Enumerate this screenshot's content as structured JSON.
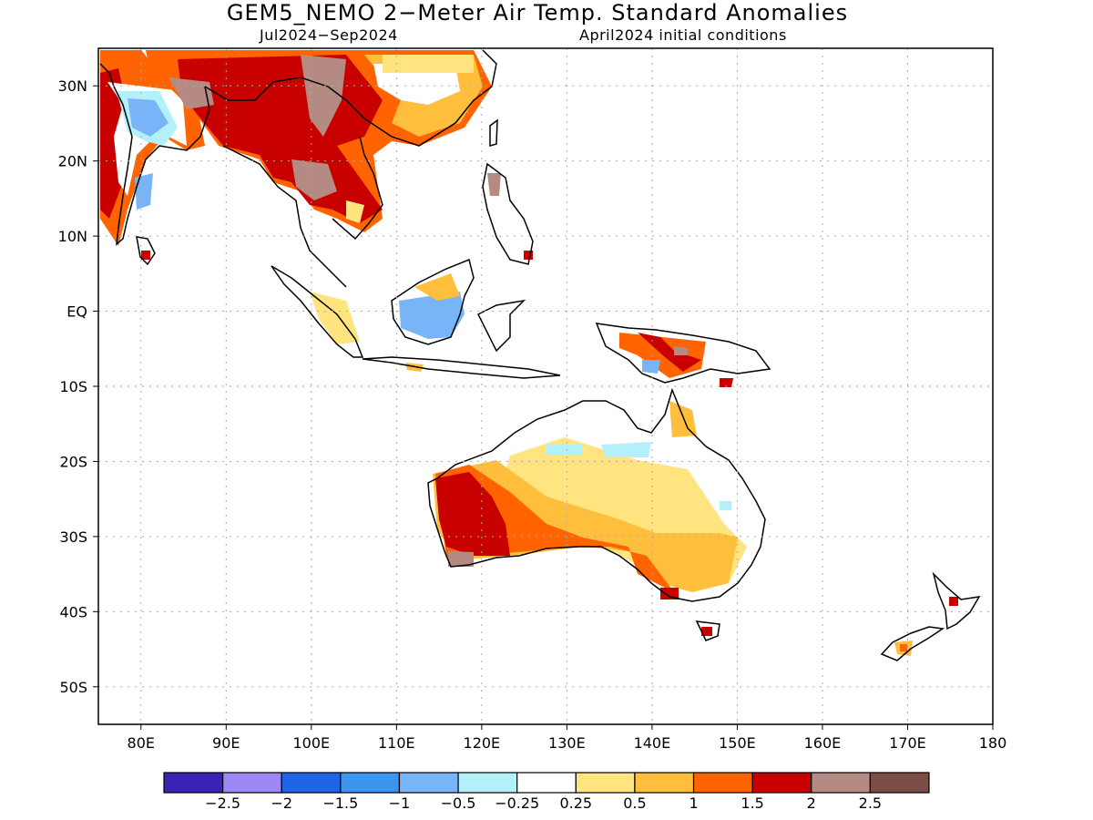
{
  "title": "GEM5_NEMO 2−Meter Air Temp. Standard Anomalies",
  "subtitle_left": "Jul2024−Sep2024",
  "subtitle_right": "April2024 initial conditions",
  "map": {
    "lon_range": [
      75,
      180
    ],
    "lat_range": [
      -55,
      35
    ],
    "lat_ticks": [
      {
        "value": 30,
        "label": "30N"
      },
      {
        "value": 20,
        "label": "20N"
      },
      {
        "value": 10,
        "label": "10N"
      },
      {
        "value": 0,
        "label": "EQ"
      },
      {
        "value": -10,
        "label": "10S"
      },
      {
        "value": -20,
        "label": "20S"
      },
      {
        "value": -30,
        "label": "30S"
      },
      {
        "value": -40,
        "label": "40S"
      },
      {
        "value": -50,
        "label": "50S"
      }
    ],
    "lon_ticks": [
      {
        "value": 80,
        "label": "80E"
      },
      {
        "value": 90,
        "label": "90E"
      },
      {
        "value": 100,
        "label": "100E"
      },
      {
        "value": 110,
        "label": "110E"
      },
      {
        "value": 120,
        "label": "120E"
      },
      {
        "value": 130,
        "label": "130E"
      },
      {
        "value": 140,
        "label": "140E"
      },
      {
        "value": 150,
        "label": "150E"
      },
      {
        "value": 160,
        "label": "160E"
      },
      {
        "value": 170,
        "label": "170E"
      },
      {
        "value": 180,
        "label": "180"
      }
    ],
    "grid": true
  },
  "colorbar": {
    "colors": [
      "#3a22b4",
      "#9c87f4",
      "#1e64e6",
      "#3c96f0",
      "#78b4f8",
      "#b4f0fa",
      "#ffffff",
      "#ffe480",
      "#ffbe3c",
      "#ff6400",
      "#c80000",
      "#b48a82",
      "#7a4e46"
    ],
    "labels": [
      "−2.5",
      "−2",
      "−1.5",
      "−1",
      "−0.5",
      "−0.25",
      "0.25",
      "0.5",
      "1",
      "1.5",
      "2",
      "2.5"
    ]
  }
}
